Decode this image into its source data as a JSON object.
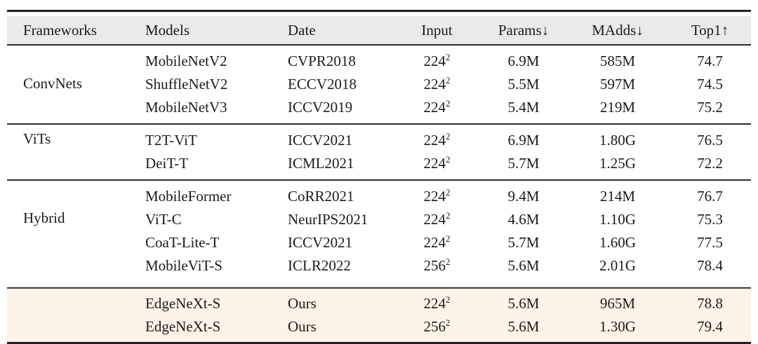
{
  "page": {
    "background": "#ffffff"
  },
  "table": {
    "columns": [
      "Frameworks",
      "Models",
      "Date",
      "Input",
      "Params↓",
      "MAdds↓",
      "Top1↑"
    ],
    "header_bg": "#eaeaea",
    "highlight_bg": "#fdf3e7",
    "rule_color": "#1f1f1f",
    "text_color": "#1b1b1b",
    "groups": [
      {
        "framework": "ConvNets",
        "highlight": false,
        "rows": [
          {
            "model": "MobileNetV2",
            "date": "CVPR2018",
            "input_base": "224",
            "input_exp": "2",
            "params": "6.9M",
            "madds": "585M",
            "top1": "74.7"
          },
          {
            "model": "ShuffleNetV2",
            "date": "ECCV2018",
            "input_base": "224",
            "input_exp": "2",
            "params": "5.5M",
            "madds": "597M",
            "top1": "74.5"
          },
          {
            "model": "MobileNetV3",
            "date": "ICCV2019",
            "input_base": "224",
            "input_exp": "2",
            "params": "5.4M",
            "madds": "219M",
            "top1": "75.2"
          }
        ]
      },
      {
        "framework": "ViTs",
        "highlight": false,
        "rows": [
          {
            "model": "T2T-ViT",
            "date": "ICCV2021",
            "input_base": "224",
            "input_exp": "2",
            "params": "6.9M",
            "madds": "1.80G",
            "top1": "76.5"
          },
          {
            "model": "DeiT-T",
            "date": "ICML2021",
            "input_base": "224",
            "input_exp": "2",
            "params": "5.7M",
            "madds": "1.25G",
            "top1": "72.2"
          }
        ]
      },
      {
        "framework": "Hybrid",
        "highlight": false,
        "rows": [
          {
            "model": "MobileFormer",
            "date": "CoRR2021",
            "input_base": "224",
            "input_exp": "2",
            "params": "9.4M",
            "madds": "214M",
            "top1": "76.7"
          },
          {
            "model": "ViT-C",
            "date": "NeurIPS2021",
            "input_base": "224",
            "input_exp": "2",
            "params": "4.6M",
            "madds": "1.10G",
            "top1": "75.3"
          },
          {
            "model": "CoaT-Lite-T",
            "date": "ICCV2021",
            "input_base": "224",
            "input_exp": "2",
            "params": "5.7M",
            "madds": "1.60G",
            "top1": "77.5"
          },
          {
            "model": "MobileViT-S",
            "date": "ICLR2022",
            "input_base": "256",
            "input_exp": "2",
            "params": "5.6M",
            "madds": "2.01G",
            "top1": "78.4"
          }
        ]
      },
      {
        "framework": "",
        "highlight": true,
        "rows": [
          {
            "model": "EdgeNeXt-S",
            "date": "Ours",
            "input_base": "224",
            "input_exp": "2",
            "params": "5.6M",
            "madds": "965M",
            "top1": "78.8"
          },
          {
            "model": "EdgeNeXt-S",
            "date": "Ours",
            "input_base": "256",
            "input_exp": "2",
            "params": "5.6M",
            "madds": "1.30G",
            "top1": "79.4"
          }
        ]
      }
    ]
  }
}
